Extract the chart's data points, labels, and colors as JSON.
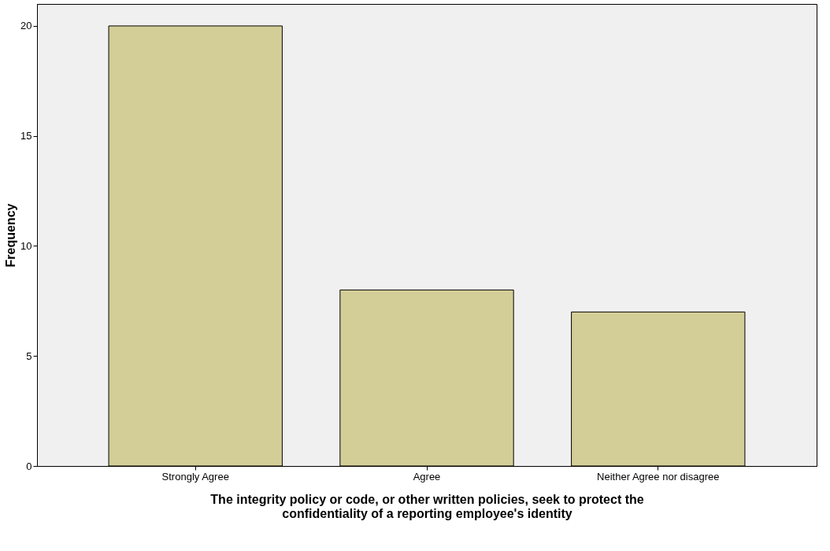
{
  "chart_data": {
    "type": "bar",
    "categories": [
      "Strongly Agree",
      "Agree",
      "Neither Agree nor disagree"
    ],
    "values": [
      20,
      8,
      7
    ],
    "color": "#d3ce97",
    "xlabel": "The integrity policy or code, or other written policies, seek to protect the\nconfidentiality of a reporting employee's identity",
    "ylabel": "Frequency",
    "ylim": [
      0,
      21
    ],
    "yticks": [
      0,
      5,
      10,
      15,
      20
    ],
    "grid": false
  }
}
